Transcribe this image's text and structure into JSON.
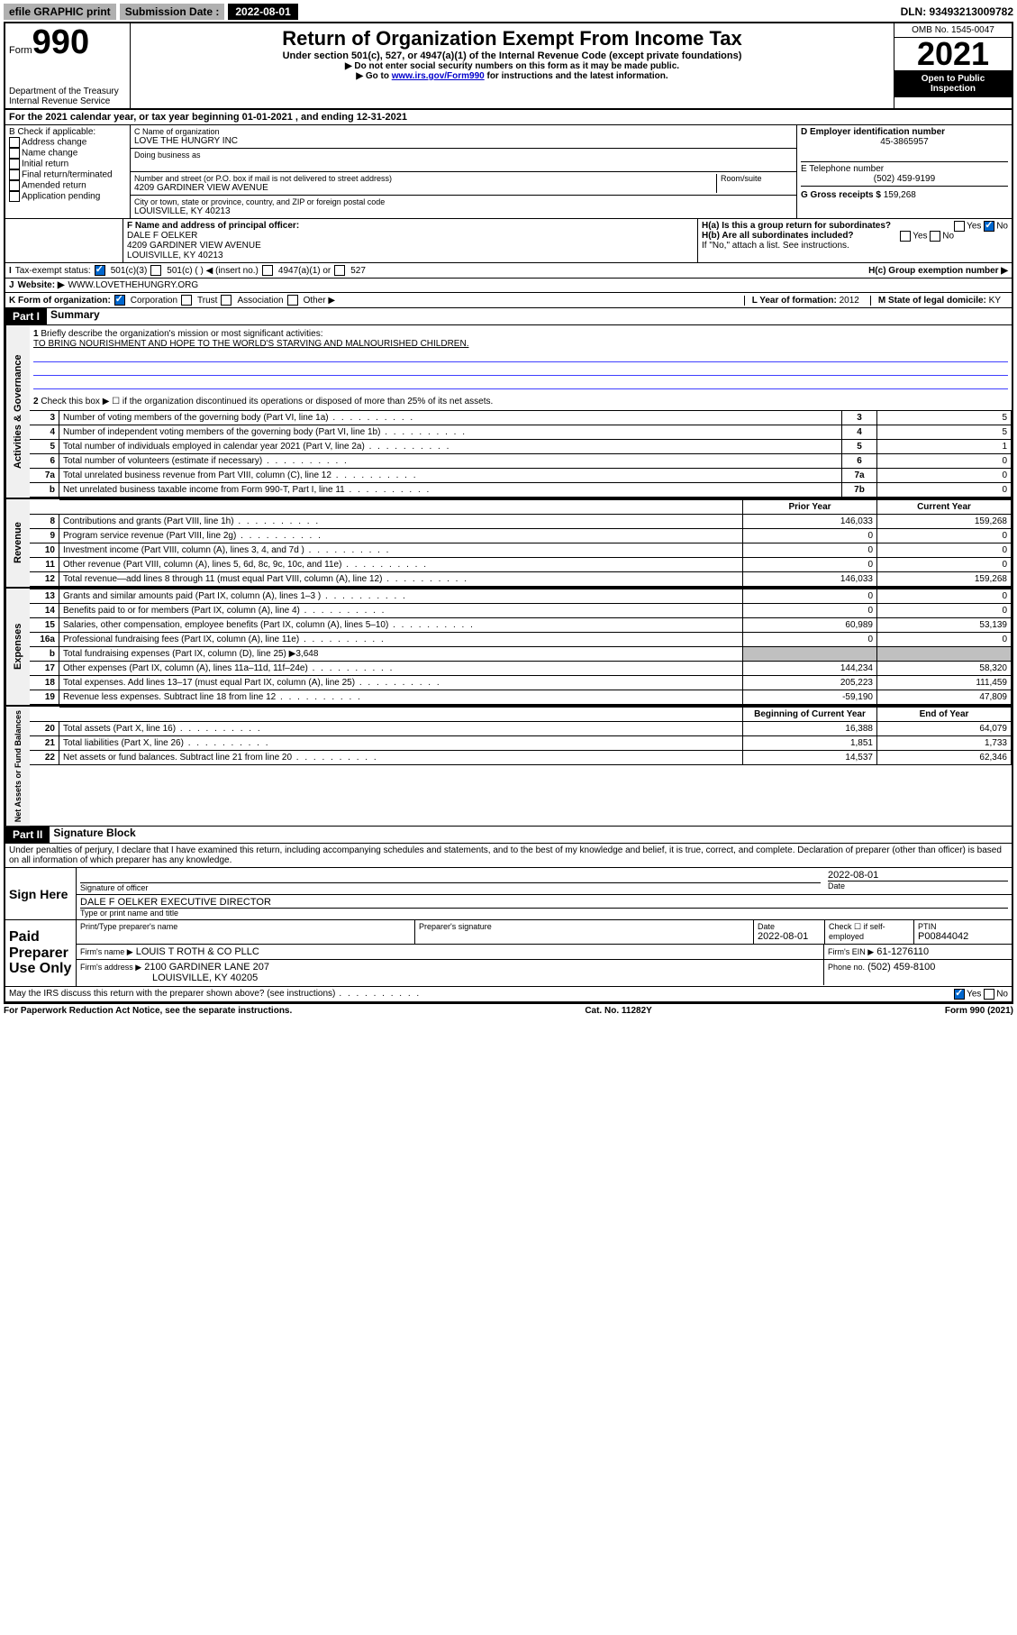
{
  "top": {
    "efile": "efile GRAPHIC print",
    "sub_label": "Submission Date :",
    "sub_date": "2022-08-01",
    "dln": "DLN: 93493213009782"
  },
  "header": {
    "form_prefix": "Form",
    "form_num": "990",
    "title": "Return of Organization Exempt From Income Tax",
    "subtitle": "Under section 501(c), 527, or 4947(a)(1) of the Internal Revenue Code (except private foundations)",
    "note1": "▶ Do not enter social security numbers on this form as it may be made public.",
    "note2_pre": "▶ Go to ",
    "note2_link": "www.irs.gov/Form990",
    "note2_post": " for instructions and the latest information.",
    "dept": "Department of the Treasury",
    "irs": "Internal Revenue Service",
    "omb": "OMB No. 1545-0047",
    "year": "2021",
    "inspection1": "Open to Public",
    "inspection2": "Inspection"
  },
  "A": {
    "text": "For the 2021 calendar year, or tax year beginning 01-01-2021  , and ending 12-31-2021"
  },
  "B": {
    "label": "B Check if applicable:",
    "addr": "Address change",
    "name": "Name change",
    "init": "Initial return",
    "final": "Final return/terminated",
    "amend": "Amended return",
    "app": "Application pending"
  },
  "C": {
    "name_label": "C Name of organization",
    "name": "LOVE THE HUNGRY INC",
    "dba_label": "Doing business as",
    "street_label": "Number and street (or P.O. box if mail is not delivered to street address)",
    "room_label": "Room/suite",
    "street": "4209 GARDINER VIEW AVENUE",
    "city_label": "City or town, state or province, country, and ZIP or foreign postal code",
    "city": "LOUISVILLE, KY  40213"
  },
  "D": {
    "label": "D Employer identification number",
    "val": "45-3865957"
  },
  "E": {
    "label": "E Telephone number",
    "val": "(502) 459-9199"
  },
  "G": {
    "label": "G Gross receipts $",
    "val": "159,268"
  },
  "F": {
    "label": "F Name and address of principal officer:",
    "name": "DALE F OELKER",
    "addr1": "4209 GARDINER VIEW AVENUE",
    "addr2": "LOUISVILLE, KY  40213"
  },
  "H": {
    "a": "H(a)  Is this a group return for subordinates?",
    "b": "H(b)  Are all subordinates included?",
    "b_note": "If \"No,\" attach a list. See instructions.",
    "c": "H(c)  Group exemption number ▶",
    "yes": "Yes",
    "no": "No"
  },
  "I": {
    "label": "Tax-exempt status:",
    "c3": "501(c)(3)",
    "c": "501(c) (  ) ◀ (insert no.)",
    "a1": "4947(a)(1) or",
    "527": "527"
  },
  "J": {
    "label": "Website: ▶",
    "val": "WWW.LOVETHEHUNGRY.ORG"
  },
  "K": {
    "label": "K Form of organization:",
    "corp": "Corporation",
    "trust": "Trust",
    "assoc": "Association",
    "other": "Other ▶"
  },
  "L": {
    "label": "L Year of formation:",
    "val": "2012"
  },
  "M": {
    "label": "M State of legal domicile:",
    "val": "KY"
  },
  "part1": {
    "header": "Part I",
    "title": "Summary",
    "vert1": "Activities & Governance",
    "vert2": "Revenue",
    "vert3": "Expenses",
    "vert4": "Net Assets or Fund Balances",
    "l1": "Briefly describe the organization's mission or most significant activities:",
    "mission": "TO BRING NOURISHMENT AND HOPE TO THE WORLD'S STARVING AND MALNOURISHED CHILDREN.",
    "l2": "Check this box ▶ ☐  if the organization discontinued its operations or disposed of more than 25% of its net assets.",
    "rows_gov": [
      {
        "n": "3",
        "d": "Number of voting members of the governing body (Part VI, line 1a)",
        "k": "3",
        "v": "5"
      },
      {
        "n": "4",
        "d": "Number of independent voting members of the governing body (Part VI, line 1b)",
        "k": "4",
        "v": "5"
      },
      {
        "n": "5",
        "d": "Total number of individuals employed in calendar year 2021 (Part V, line 2a)",
        "k": "5",
        "v": "1"
      },
      {
        "n": "6",
        "d": "Total number of volunteers (estimate if necessary)",
        "k": "6",
        "v": "0"
      },
      {
        "n": "7a",
        "d": "Total unrelated business revenue from Part VIII, column (C), line 12",
        "k": "7a",
        "v": "0"
      },
      {
        "n": "b",
        "d": "Net unrelated business taxable income from Form 990-T, Part I, line 11",
        "k": "7b",
        "v": "0"
      }
    ],
    "th_prior": "Prior Year",
    "th_curr": "Current Year",
    "rows_rev": [
      {
        "n": "8",
        "d": "Contributions and grants (Part VIII, line 1h)",
        "p": "146,033",
        "c": "159,268"
      },
      {
        "n": "9",
        "d": "Program service revenue (Part VIII, line 2g)",
        "p": "0",
        "c": "0"
      },
      {
        "n": "10",
        "d": "Investment income (Part VIII, column (A), lines 3, 4, and 7d )",
        "p": "0",
        "c": "0"
      },
      {
        "n": "11",
        "d": "Other revenue (Part VIII, column (A), lines 5, 6d, 8c, 9c, 10c, and 11e)",
        "p": "0",
        "c": "0"
      },
      {
        "n": "12",
        "d": "Total revenue—add lines 8 through 11 (must equal Part VIII, column (A), line 12)",
        "p": "146,033",
        "c": "159,268"
      }
    ],
    "rows_exp": [
      {
        "n": "13",
        "d": "Grants and similar amounts paid (Part IX, column (A), lines 1–3 )",
        "p": "0",
        "c": "0"
      },
      {
        "n": "14",
        "d": "Benefits paid to or for members (Part IX, column (A), line 4)",
        "p": "0",
        "c": "0"
      },
      {
        "n": "15",
        "d": "Salaries, other compensation, employee benefits (Part IX, column (A), lines 5–10)",
        "p": "60,989",
        "c": "53,139"
      },
      {
        "n": "16a",
        "d": "Professional fundraising fees (Part IX, column (A), line 11e)",
        "p": "0",
        "c": "0"
      },
      {
        "n": "b",
        "d": "Total fundraising expenses (Part IX, column (D), line 25) ▶3,648",
        "p": "",
        "c": "",
        "grey": true
      },
      {
        "n": "17",
        "d": "Other expenses (Part IX, column (A), lines 11a–11d, 11f–24e)",
        "p": "144,234",
        "c": "58,320"
      },
      {
        "n": "18",
        "d": "Total expenses. Add lines 13–17 (must equal Part IX, column (A), line 25)",
        "p": "205,223",
        "c": "111,459"
      },
      {
        "n": "19",
        "d": "Revenue less expenses. Subtract line 18 from line 12",
        "p": "-59,190",
        "c": "47,809"
      }
    ],
    "th_beg": "Beginning of Current Year",
    "th_end": "End of Year",
    "rows_net": [
      {
        "n": "20",
        "d": "Total assets (Part X, line 16)",
        "p": "16,388",
        "c": "64,079"
      },
      {
        "n": "21",
        "d": "Total liabilities (Part X, line 26)",
        "p": "1,851",
        "c": "1,733"
      },
      {
        "n": "22",
        "d": "Net assets or fund balances. Subtract line 21 from line 20",
        "p": "14,537",
        "c": "62,346"
      }
    ]
  },
  "part2": {
    "header": "Part II",
    "title": "Signature Block",
    "decl": "Under penalties of perjury, I declare that I have examined this return, including accompanying schedules and statements, and to the best of my knowledge and belief, it is true, correct, and complete. Declaration of preparer (other than officer) is based on all information of which preparer has any knowledge.",
    "sign_here": "Sign Here",
    "sig_officer": "Signature of officer",
    "sig_date": "Date",
    "sig_date_val": "2022-08-01",
    "name_title": "DALE F OELKER  EXECUTIVE DIRECTOR",
    "type_name": "Type or print name and title",
    "paid": "Paid Preparer Use Only",
    "prep_name": "Print/Type preparer's name",
    "prep_sig": "Preparer's signature",
    "prep_date": "Date",
    "prep_date_val": "2022-08-01",
    "prep_check": "Check ☐ if self-employed",
    "ptin_label": "PTIN",
    "ptin": "P00844042",
    "firm_name_label": "Firm's name    ▶",
    "firm_name": "LOUIS T ROTH & CO PLLC",
    "firm_ein_label": "Firm's EIN ▶",
    "firm_ein": "61-1276110",
    "firm_addr_label": "Firm's address ▶",
    "firm_addr1": "2100 GARDINER LANE 207",
    "firm_addr2": "LOUISVILLE, KY  40205",
    "phone_label": "Phone no.",
    "phone": "(502) 459-8100",
    "may_irs": "May the IRS discuss this return with the preparer shown above? (see instructions)"
  },
  "footer": {
    "left": "For Paperwork Reduction Act Notice, see the separate instructions.",
    "mid": "Cat. No. 11282Y",
    "right": "Form 990 (2021)"
  }
}
